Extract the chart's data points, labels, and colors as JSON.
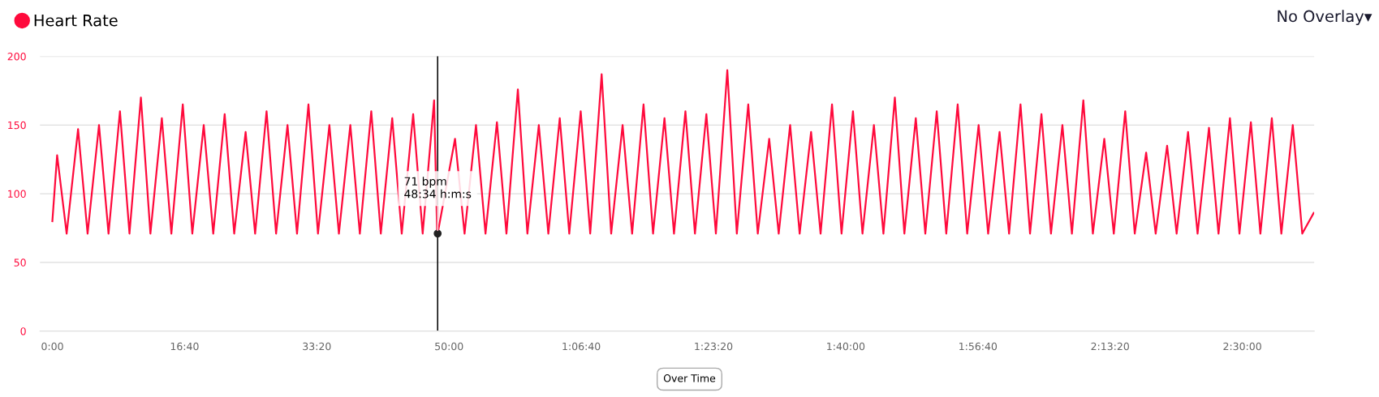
{
  "chart_data": {
    "type": "line",
    "legend": "top left",
    "grid": "y",
    "marker": "none",
    "line_style": "solid",
    "xlim": [
      -1.56,
      159.06
    ],
    "ylim": [
      0,
      200
    ],
    "yticks": [
      0,
      50,
      100,
      150,
      200
    ],
    "xticks": [
      {
        "value": 0,
        "label": "0:00"
      },
      {
        "value": 16.667,
        "label": "16:40"
      },
      {
        "value": 33.333,
        "label": "33:20"
      },
      {
        "value": 50,
        "label": "50:00"
      },
      {
        "value": 66.667,
        "label": "1:06:40"
      },
      {
        "value": 83.333,
        "label": "1:23:20"
      },
      {
        "value": 100,
        "label": "1:40:00"
      },
      {
        "value": 116.667,
        "label": "1:56:40"
      },
      {
        "value": 133.333,
        "label": "2:13:20"
      },
      {
        "value": 150,
        "label": "2:30:00"
      }
    ],
    "series": [
      {
        "name": "Heart Rate",
        "color": "#ff0a3c",
        "x": [
          0.0,
          0.6,
          1.8,
          3.24,
          4.44,
          5.88,
          7.08,
          8.52,
          9.72,
          11.16,
          12.36,
          13.8,
          15.0,
          16.44,
          17.64,
          19.08,
          20.28,
          21.72,
          22.92,
          24.36,
          25.56,
          27.0,
          28.2,
          29.64,
          30.84,
          32.28,
          33.48,
          34.92,
          36.12,
          37.56,
          38.76,
          40.2,
          41.4,
          42.84,
          44.04,
          45.48,
          46.68,
          48.12,
          48.5,
          48.57,
          50.76,
          51.96,
          53.4,
          54.6,
          56.04,
          57.24,
          58.68,
          59.88,
          61.32,
          62.52,
          63.96,
          65.16,
          66.6,
          67.8,
          69.24,
          70.44,
          71.88,
          73.08,
          74.52,
          75.72,
          77.16,
          78.36,
          79.8,
          81.0,
          82.44,
          83.64,
          85.08,
          86.28,
          87.72,
          88.92,
          90.36,
          91.56,
          93.0,
          94.2,
          95.64,
          96.84,
          98.28,
          99.48,
          100.92,
          102.12,
          103.56,
          104.76,
          106.2,
          107.4,
          108.84,
          110.04,
          111.48,
          112.68,
          114.12,
          115.32,
          116.76,
          117.96,
          119.4,
          120.6,
          122.04,
          123.24,
          124.68,
          125.88,
          127.32,
          128.52,
          129.96,
          131.16,
          132.6,
          133.8,
          135.24,
          136.44,
          137.88,
          139.08,
          140.52,
          141.72,
          143.16,
          144.36,
          145.8,
          147.0,
          148.44,
          149.64,
          151.08,
          152.28,
          153.72,
          154.92,
          156.36,
          157.56,
          159.0
        ],
        "values": [
          80,
          128,
          71,
          147,
          71,
          150,
          71,
          160,
          71,
          170,
          71,
          155,
          71,
          165,
          71,
          150,
          71,
          158,
          71,
          145,
          71,
          160,
          71,
          150,
          71,
          165,
          71,
          150,
          71,
          150,
          71,
          160,
          71,
          155,
          71,
          158,
          71,
          168,
          71,
          71,
          140,
          71,
          150,
          71,
          152,
          71,
          176,
          71,
          150,
          71,
          155,
          71,
          160,
          71,
          187,
          71,
          150,
          71,
          165,
          71,
          155,
          71,
          160,
          71,
          158,
          71,
          190,
          71,
          165,
          71,
          140,
          71,
          150,
          71,
          145,
          71,
          165,
          71,
          160,
          71,
          150,
          71,
          170,
          71,
          155,
          71,
          160,
          71,
          165,
          71,
          150,
          71,
          145,
          71,
          165,
          71,
          158,
          71,
          150,
          71,
          168,
          71,
          140,
          71,
          160,
          71,
          130,
          71,
          135,
          71,
          145,
          71,
          148,
          71,
          155,
          71,
          152,
          71,
          155,
          71,
          150,
          71,
          86
        ]
      }
    ],
    "ref_lines": [
      {
        "axis": "x",
        "value": 48.567,
        "color": "#000000"
      }
    ],
    "annotations": [
      "No Overlay▾",
      "Over Time",
      {
        "text": "71 bpm\n48:34 h:m:s",
        "x": 48.567,
        "y": 71
      }
    ]
  }
}
